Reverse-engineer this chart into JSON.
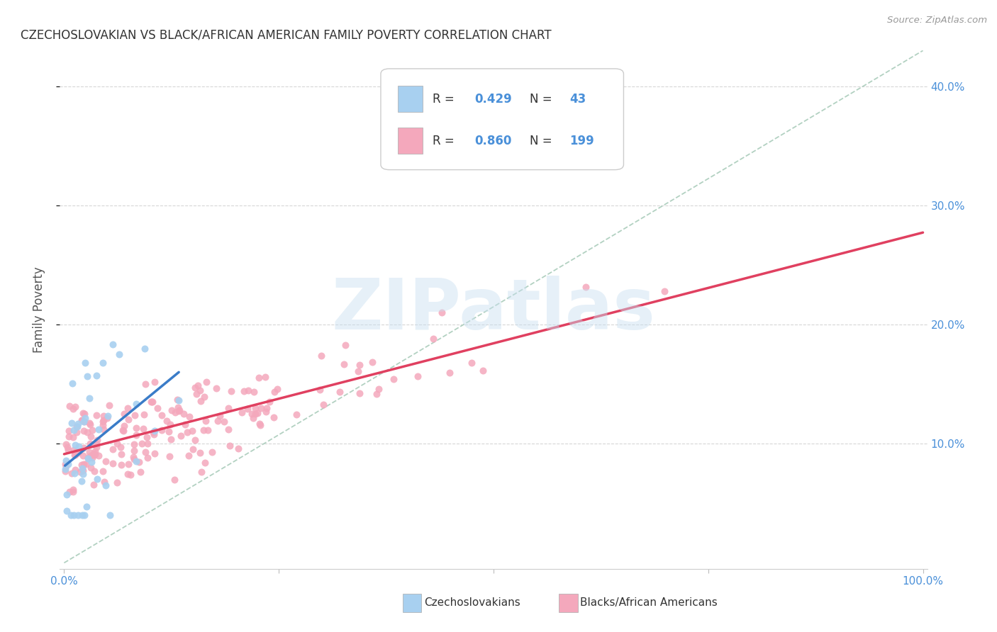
{
  "title": "CZECHOSLOVAKIAN VS BLACK/AFRICAN AMERICAN FAMILY POVERTY CORRELATION CHART",
  "source": "Source: ZipAtlas.com",
  "ylabel": "Family Poverty",
  "r_czech": 0.429,
  "n_czech": 43,
  "r_black": 0.86,
  "n_black": 199,
  "color_czech": "#A8D0F0",
  "color_black": "#F4A8BC",
  "color_czech_line": "#3A7CC8",
  "color_black_line": "#E04060",
  "color_diagonal": "#AACCBB",
  "background_color": "#FFFFFF",
  "xlim": [
    0.0,
    1.0
  ],
  "ylim": [
    0.0,
    0.43
  ],
  "ytick_vals": [
    0.1,
    0.2,
    0.3,
    0.4
  ],
  "ytick_labels": [
    "10.0%",
    "20.0%",
    "30.0%",
    "40.0%"
  ],
  "watermark_text": "ZIPatlas",
  "watermark_color": "#C8DFF0",
  "legend_label_czech": "Czechoslovakians",
  "legend_label_black": "Blacks/African Americans"
}
